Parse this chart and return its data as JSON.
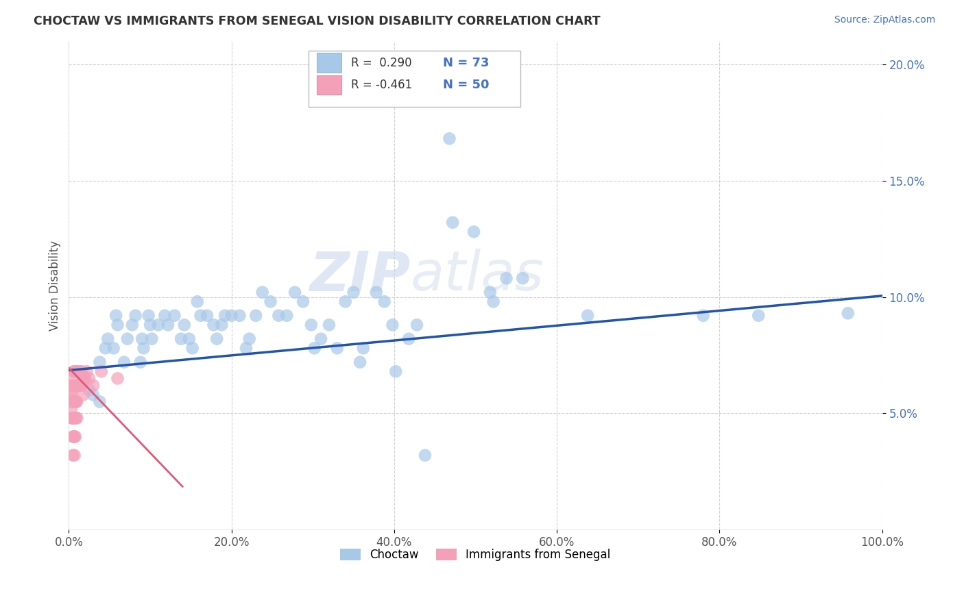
{
  "title": "CHOCTAW VS IMMIGRANTS FROM SENEGAL VISION DISABILITY CORRELATION CHART",
  "source": "Source: ZipAtlas.com",
  "ylabel": "Vision Disability",
  "xlim": [
    0.0,
    1.0
  ],
  "ylim": [
    0.0,
    0.21
  ],
  "xticks": [
    0.0,
    0.2,
    0.4,
    0.6,
    0.8,
    1.0
  ],
  "xtick_labels": [
    "0.0%",
    "20.0%",
    "40.0%",
    "60.0%",
    "80.0%",
    "100.0%"
  ],
  "yticks": [
    0.05,
    0.1,
    0.15,
    0.2
  ],
  "ytick_labels": [
    "5.0%",
    "10.0%",
    "15.0%",
    "20.0%"
  ],
  "legend_label1": "Choctaw",
  "legend_label2": "Immigrants from Senegal",
  "blue_color": "#a8c8e8",
  "pink_color": "#f4a0b8",
  "blue_line_color": "#2255aa",
  "pink_line_color": "#e05878",
  "watermark_zip": "ZIP",
  "watermark_atlas": "atlas",
  "background_color": "#ffffff",
  "grid_color": "#cccccc",
  "title_color": "#333333",
  "tick_color": "#4472c4",
  "blue_scatter": [
    [
      0.018,
      0.065
    ],
    [
      0.025,
      0.06
    ],
    [
      0.03,
      0.058
    ],
    [
      0.038,
      0.072
    ],
    [
      0.038,
      0.055
    ],
    [
      0.045,
      0.078
    ],
    [
      0.048,
      0.082
    ],
    [
      0.055,
      0.078
    ],
    [
      0.058,
      0.092
    ],
    [
      0.06,
      0.088
    ],
    [
      0.068,
      0.072
    ],
    [
      0.072,
      0.082
    ],
    [
      0.078,
      0.088
    ],
    [
      0.082,
      0.092
    ],
    [
      0.088,
      0.072
    ],
    [
      0.09,
      0.082
    ],
    [
      0.092,
      0.078
    ],
    [
      0.098,
      0.092
    ],
    [
      0.1,
      0.088
    ],
    [
      0.102,
      0.082
    ],
    [
      0.11,
      0.088
    ],
    [
      0.118,
      0.092
    ],
    [
      0.122,
      0.088
    ],
    [
      0.13,
      0.092
    ],
    [
      0.138,
      0.082
    ],
    [
      0.142,
      0.088
    ],
    [
      0.148,
      0.082
    ],
    [
      0.152,
      0.078
    ],
    [
      0.158,
      0.098
    ],
    [
      0.162,
      0.092
    ],
    [
      0.17,
      0.092
    ],
    [
      0.178,
      0.088
    ],
    [
      0.182,
      0.082
    ],
    [
      0.188,
      0.088
    ],
    [
      0.192,
      0.092
    ],
    [
      0.2,
      0.092
    ],
    [
      0.21,
      0.092
    ],
    [
      0.218,
      0.078
    ],
    [
      0.222,
      0.082
    ],
    [
      0.23,
      0.092
    ],
    [
      0.238,
      0.102
    ],
    [
      0.248,
      0.098
    ],
    [
      0.258,
      0.092
    ],
    [
      0.268,
      0.092
    ],
    [
      0.278,
      0.102
    ],
    [
      0.288,
      0.098
    ],
    [
      0.298,
      0.088
    ],
    [
      0.302,
      0.078
    ],
    [
      0.31,
      0.082
    ],
    [
      0.32,
      0.088
    ],
    [
      0.33,
      0.078
    ],
    [
      0.34,
      0.098
    ],
    [
      0.35,
      0.102
    ],
    [
      0.358,
      0.072
    ],
    [
      0.362,
      0.078
    ],
    [
      0.378,
      0.102
    ],
    [
      0.388,
      0.098
    ],
    [
      0.398,
      0.088
    ],
    [
      0.402,
      0.068
    ],
    [
      0.418,
      0.082
    ],
    [
      0.428,
      0.088
    ],
    [
      0.438,
      0.032
    ],
    [
      0.468,
      0.168
    ],
    [
      0.472,
      0.132
    ],
    [
      0.498,
      0.128
    ],
    [
      0.518,
      0.102
    ],
    [
      0.522,
      0.098
    ],
    [
      0.538,
      0.108
    ],
    [
      0.558,
      0.108
    ],
    [
      0.638,
      0.092
    ],
    [
      0.78,
      0.092
    ],
    [
      0.848,
      0.092
    ],
    [
      0.958,
      0.093
    ]
  ],
  "pink_scatter": [
    [
      0.003,
      0.058
    ],
    [
      0.003,
      0.052
    ],
    [
      0.003,
      0.048
    ],
    [
      0.004,
      0.062
    ],
    [
      0.004,
      0.055
    ],
    [
      0.004,
      0.048
    ],
    [
      0.005,
      0.065
    ],
    [
      0.005,
      0.06
    ],
    [
      0.005,
      0.055
    ],
    [
      0.005,
      0.048
    ],
    [
      0.005,
      0.04
    ],
    [
      0.005,
      0.032
    ],
    [
      0.006,
      0.068
    ],
    [
      0.006,
      0.062
    ],
    [
      0.006,
      0.055
    ],
    [
      0.006,
      0.048
    ],
    [
      0.006,
      0.04
    ],
    [
      0.007,
      0.068
    ],
    [
      0.007,
      0.062
    ],
    [
      0.007,
      0.055
    ],
    [
      0.007,
      0.048
    ],
    [
      0.007,
      0.04
    ],
    [
      0.007,
      0.032
    ],
    [
      0.008,
      0.068
    ],
    [
      0.008,
      0.062
    ],
    [
      0.008,
      0.055
    ],
    [
      0.008,
      0.048
    ],
    [
      0.008,
      0.04
    ],
    [
      0.009,
      0.068
    ],
    [
      0.009,
      0.062
    ],
    [
      0.009,
      0.055
    ],
    [
      0.009,
      0.048
    ],
    [
      0.01,
      0.068
    ],
    [
      0.01,
      0.062
    ],
    [
      0.01,
      0.055
    ],
    [
      0.01,
      0.048
    ],
    [
      0.012,
      0.068
    ],
    [
      0.012,
      0.062
    ],
    [
      0.014,
      0.068
    ],
    [
      0.014,
      0.062
    ],
    [
      0.016,
      0.068
    ],
    [
      0.016,
      0.062
    ],
    [
      0.018,
      0.065
    ],
    [
      0.018,
      0.058
    ],
    [
      0.02,
      0.065
    ],
    [
      0.022,
      0.068
    ],
    [
      0.025,
      0.065
    ],
    [
      0.03,
      0.062
    ],
    [
      0.04,
      0.068
    ],
    [
      0.06,
      0.065
    ]
  ],
  "blue_line_x": [
    0.0,
    1.0
  ],
  "blue_line_y": [
    0.0685,
    0.1005
  ],
  "pink_line_x": [
    0.0,
    0.14
  ],
  "pink_line_y": [
    0.0695,
    0.0185
  ]
}
